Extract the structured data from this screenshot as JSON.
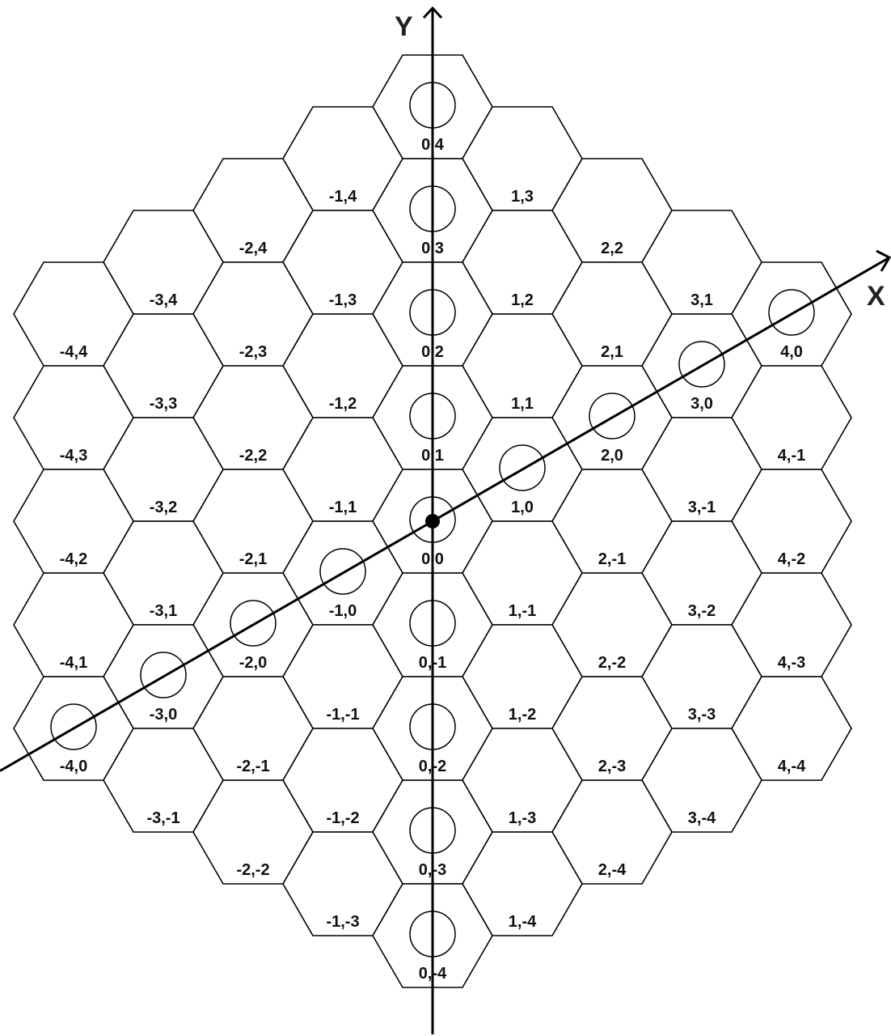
{
  "axes": {
    "x_label": "X",
    "y_label": "Y"
  },
  "colors": {
    "stroke": "#000000",
    "background": "#ffffff",
    "label": "#111111"
  },
  "grid": {
    "coordinate_range": [
      -4,
      4
    ],
    "cells": [
      {
        "x": 0,
        "y": 4,
        "label": "0,4"
      },
      {
        "x": -1,
        "y": 4,
        "label": "-1,4"
      },
      {
        "x": 1,
        "y": 3,
        "label": "1,3"
      },
      {
        "x": 0,
        "y": 3,
        "label": "0,3"
      },
      {
        "x": -2,
        "y": 4,
        "label": "-2,4"
      },
      {
        "x": 2,
        "y": 2,
        "label": "2,2"
      },
      {
        "x": -3,
        "y": 4,
        "label": "-3,4"
      },
      {
        "x": -1,
        "y": 3,
        "label": "-1,3"
      },
      {
        "x": 1,
        "y": 2,
        "label": "1,2"
      },
      {
        "x": 3,
        "y": 1,
        "label": "3,1"
      },
      {
        "x": -4,
        "y": 4,
        "label": "-4,4"
      },
      {
        "x": -2,
        "y": 3,
        "label": "-2,3"
      },
      {
        "x": 0,
        "y": 2,
        "label": "0,2"
      },
      {
        "x": 2,
        "y": 1,
        "label": "2,1"
      },
      {
        "x": 4,
        "y": 0,
        "label": "4,0"
      },
      {
        "x": -3,
        "y": 3,
        "label": "-3,3"
      },
      {
        "x": -1,
        "y": 2,
        "label": "-1,2"
      },
      {
        "x": 1,
        "y": 1,
        "label": "1,1"
      },
      {
        "x": 3,
        "y": 0,
        "label": "3,0"
      },
      {
        "x": -4,
        "y": 3,
        "label": "-4,3"
      },
      {
        "x": -2,
        "y": 2,
        "label": "-2,2"
      },
      {
        "x": 0,
        "y": 1,
        "label": "0,1"
      },
      {
        "x": 2,
        "y": 0,
        "label": "2,0"
      },
      {
        "x": 4,
        "y": -1,
        "label": "4,-1"
      },
      {
        "x": -3,
        "y": 2,
        "label": "-3,2"
      },
      {
        "x": -1,
        "y": 1,
        "label": "-1,1"
      },
      {
        "x": 1,
        "y": 0,
        "label": "1,0"
      },
      {
        "x": 3,
        "y": -1,
        "label": "3,-1"
      },
      {
        "x": -4,
        "y": 2,
        "label": "-4,2"
      },
      {
        "x": -2,
        "y": 1,
        "label": "-2,1"
      },
      {
        "x": 0,
        "y": 0,
        "label": "0,0"
      },
      {
        "x": 2,
        "y": -1,
        "label": "2,-1"
      },
      {
        "x": 4,
        "y": -2,
        "label": "4,-2"
      },
      {
        "x": -3,
        "y": 1,
        "label": "-3,1"
      },
      {
        "x": -1,
        "y": 0,
        "label": "-1,0"
      },
      {
        "x": 1,
        "y": -1,
        "label": "1,-1"
      },
      {
        "x": 3,
        "y": -2,
        "label": "3,-2"
      },
      {
        "x": -4,
        "y": 1,
        "label": "-4,1"
      },
      {
        "x": -2,
        "y": 0,
        "label": "-2,0"
      },
      {
        "x": 0,
        "y": -1,
        "label": "0,-1"
      },
      {
        "x": 2,
        "y": -2,
        "label": "2,-2"
      },
      {
        "x": 4,
        "y": -3,
        "label": "4,-3"
      },
      {
        "x": -3,
        "y": 0,
        "label": "-3,0"
      },
      {
        "x": -1,
        "y": -1,
        "label": "-1,-1"
      },
      {
        "x": 1,
        "y": -2,
        "label": "1,-2"
      },
      {
        "x": 3,
        "y": -3,
        "label": "3,-3"
      },
      {
        "x": -4,
        "y": 0,
        "label": "-4,0"
      },
      {
        "x": -2,
        "y": -1,
        "label": "-2,-1"
      },
      {
        "x": 0,
        "y": -2,
        "label": "0,-2"
      },
      {
        "x": 2,
        "y": -3,
        "label": "2,-3"
      },
      {
        "x": 4,
        "y": -4,
        "label": "4,-4"
      },
      {
        "x": -3,
        "y": -1,
        "label": "-3,-1"
      },
      {
        "x": -1,
        "y": -2,
        "label": "-1,-2"
      },
      {
        "x": 1,
        "y": -3,
        "label": "1,-3"
      },
      {
        "x": 3,
        "y": -4,
        "label": "3,-4"
      },
      {
        "x": -2,
        "y": -2,
        "label": "-2,-2"
      },
      {
        "x": 0,
        "y": -3,
        "label": "0,-3"
      },
      {
        "x": 2,
        "y": -4,
        "label": "2,-4"
      },
      {
        "x": -1,
        "y": -3,
        "label": "-1,-3"
      },
      {
        "x": 1,
        "y": -4,
        "label": "1,-4"
      },
      {
        "x": 0,
        "y": -4,
        "label": "0,-4"
      }
    ]
  },
  "markers": {
    "on_y_axis": [
      [
        0,
        4
      ],
      [
        0,
        3
      ],
      [
        0,
        2
      ],
      [
        0,
        1
      ],
      [
        0,
        0
      ],
      [
        0,
        -1
      ],
      [
        0,
        -2
      ],
      [
        0,
        -3
      ],
      [
        0,
        -4
      ]
    ],
    "on_x_axis": [
      [
        -4,
        0
      ],
      [
        -3,
        0
      ],
      [
        -2,
        0
      ],
      [
        -1,
        0
      ],
      [
        1,
        0
      ],
      [
        2,
        0
      ],
      [
        3,
        0
      ],
      [
        4,
        0
      ]
    ],
    "origin_point": [
      0,
      0
    ]
  }
}
